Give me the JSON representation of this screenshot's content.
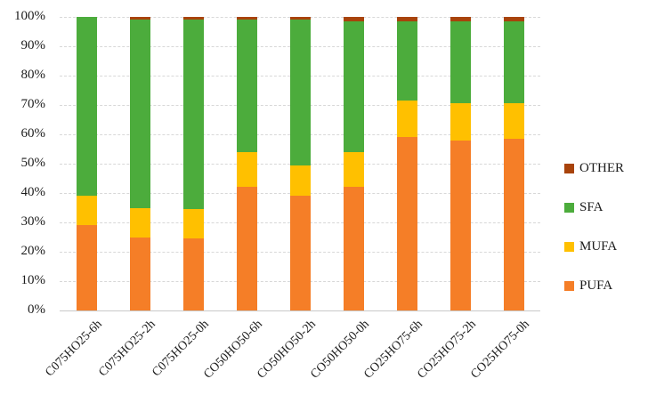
{
  "figure": {
    "background": "#ffffff",
    "text_color": "#1c1c1c",
    "gridline_color": "#d8d8d8"
  },
  "chart_data": {
    "type": "bar",
    "stacked": true,
    "percent_stacked": true,
    "title": "",
    "xlabel": "",
    "ylabel": "",
    "categories": [
      "C075HO25-6h",
      "C075HO25-2h",
      "C075HO25-0h",
      "CO50HO50-6h",
      "CO50HO50-2h",
      "CO50HO50-0h",
      "CO25HO75-6h",
      "CO25HO75-2h",
      "CO25HO75-0h"
    ],
    "series": [
      {
        "name": "PUFA",
        "color": "#F57E27",
        "values": [
          29,
          25,
          24.5,
          42,
          39,
          42,
          59,
          58,
          58.5
        ]
      },
      {
        "name": "MUFA",
        "color": "#FFC000",
        "values": [
          10,
          10,
          10,
          12,
          10.5,
          12,
          12.5,
          12.5,
          12
        ]
      },
      {
        "name": "SFA",
        "color": "#4CAC3C",
        "values": [
          61,
          64,
          64.5,
          45,
          49.5,
          44.5,
          27,
          28,
          28
        ]
      },
      {
        "name": "OTHER",
        "color": "#A8430B",
        "values": [
          0,
          1,
          1,
          1,
          1,
          1.5,
          1.5,
          1.5,
          1.5
        ]
      }
    ],
    "y_axis": {
      "min": 0,
      "max": 100,
      "tick_step": 10,
      "ticks": [
        "100%",
        "90%",
        "80%",
        "70%",
        "60%",
        "50%",
        "40%",
        "30%",
        "20%",
        "10%",
        "0%"
      ],
      "grid": true
    },
    "legend": {
      "position": "right",
      "order": [
        "OTHER",
        "SFA",
        "MUFA",
        "PUFA"
      ]
    }
  }
}
